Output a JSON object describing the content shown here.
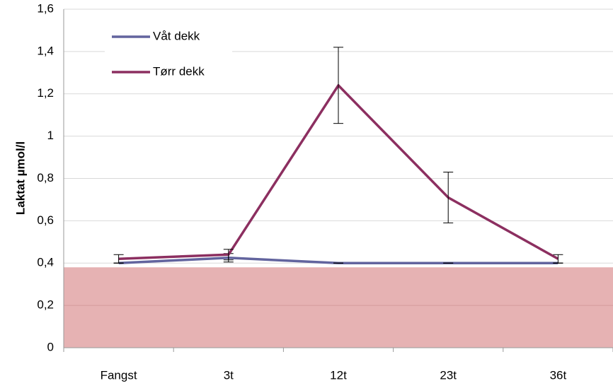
{
  "chart_data": {
    "type": "line",
    "y_label": "Laktat µmol/l",
    "categories": [
      "Fangst",
      "3t",
      "12t",
      "23t",
      "36t"
    ],
    "series": [
      {
        "name": "Våt dekk",
        "color": "#62649e",
        "values": [
          0.4,
          0.425,
          0.4,
          0.4,
          0.4
        ],
        "errors": [
          0,
          0.02,
          0,
          0,
          0
        ]
      },
      {
        "name": "Tørr dekk",
        "color": "#8c2f60",
        "values": [
          0.42,
          0.44,
          1.24,
          0.71,
          0.42
        ],
        "errors": [
          0.02,
          0.025,
          0.18,
          0.12,
          0.02
        ]
      }
    ],
    "ylim": [
      0,
      1.6
    ],
    "yticks": [
      0,
      {
        "value": 0.2,
        "label": "0,2"
      },
      {
        "value": 0.4,
        "label": "0,4"
      },
      {
        "value": 0.6,
        "label": "0,6"
      },
      {
        "value": 0.8,
        "label": "0,8"
      },
      1,
      {
        "value": 1.2,
        "label": "1,2"
      },
      {
        "value": 1.4,
        "label": "1,4"
      },
      {
        "value": 1.6,
        "label": "1,6"
      }
    ],
    "grid": true,
    "legend": "top-left",
    "shaded_band": {
      "from": 0,
      "to": 0.38,
      "color": "#e6b2b3"
    }
  }
}
